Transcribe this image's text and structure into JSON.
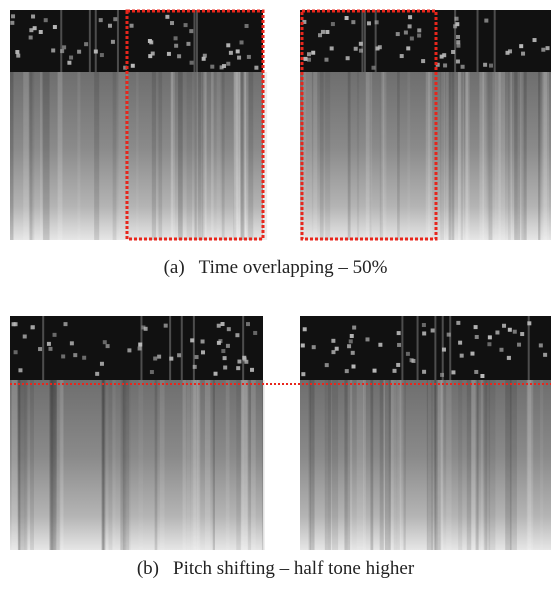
{
  "captions": [
    {
      "label": "(a)",
      "text": "Time overlapping – 50%"
    },
    {
      "label": "(b)",
      "text": "Pitch shifting – half tone higher"
    }
  ]
}
